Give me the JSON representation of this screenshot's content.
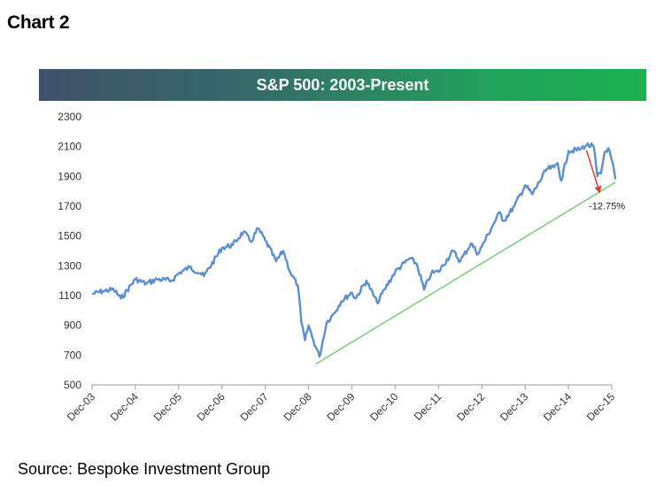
{
  "heading": "Chart 2",
  "source": "Source: Bespoke Investment Group",
  "colors": {
    "series": "#5b8fd0",
    "trendline": "#7fcf7f",
    "arrow": "#e03a2f",
    "axis": "#9a9a9a"
  },
  "chart_data": {
    "type": "line",
    "title": "S&P 500: 2003-Present",
    "xlabel": "",
    "ylabel": "",
    "ylim": [
      500,
      2300
    ],
    "yticks": [
      500,
      700,
      900,
      1100,
      1300,
      1500,
      1700,
      1900,
      2100,
      2300
    ],
    "xtick_labels": [
      "Dec-03",
      "Dec-04",
      "Dec-05",
      "Dec-06",
      "Dec-07",
      "Dec-08",
      "Dec-09",
      "Dec-10",
      "Dec-11",
      "Dec-12",
      "Dec-13",
      "Dec-14",
      "Dec-15"
    ],
    "grid": false,
    "legend": "none",
    "series": [
      {
        "x": [
          "Dec-03",
          "Mar-04",
          "Jun-04",
          "Aug-04",
          "Dec-04",
          "Mar-05",
          "Jun-05",
          "Oct-05",
          "Dec-05",
          "Mar-06",
          "Jun-06",
          "Jul-06",
          "Dec-06",
          "Mar-07",
          "Jun-07",
          "Aug-07",
          "Oct-07",
          "Dec-07",
          "Mar-08",
          "May-08",
          "Jul-08",
          "Sep-08",
          "Oct-08",
          "Nov-08",
          "Dec-08",
          "Jan-09",
          "Mar-09",
          "May-09",
          "Jul-09",
          "Sep-09",
          "Dec-09",
          "Jan-10",
          "Apr-10",
          "Jul-10",
          "Sep-10",
          "Dec-10",
          "Apr-11",
          "Jun-11",
          "Aug-11",
          "Oct-11",
          "Dec-11",
          "Apr-12",
          "Jun-12",
          "Sep-12",
          "Nov-12",
          "Dec-12",
          "Mar-13",
          "May-13",
          "Jun-13",
          "Sep-13",
          "Dec-13",
          "Feb-14",
          "Jun-14",
          "Aug-14",
          "Sep-14",
          "Oct-14",
          "Dec-14",
          "Mar-15",
          "May-15",
          "Jul-15",
          "Aug-15",
          "Sep-15",
          "Oct-15",
          "Nov-15",
          "Dec-15",
          "Jan-16"
        ],
        "values": [
          1110,
          1130,
          1140,
          1080,
          1210,
          1180,
          1210,
          1200,
          1250,
          1290,
          1250,
          1230,
          1420,
          1440,
          1530,
          1460,
          1550,
          1470,
          1330,
          1400,
          1250,
          1170,
          920,
          800,
          900,
          820,
          690,
          920,
          980,
          1060,
          1120,
          1080,
          1200,
          1050,
          1140,
          1260,
          1350,
          1310,
          1140,
          1250,
          1260,
          1400,
          1330,
          1450,
          1380,
          1430,
          1570,
          1660,
          1600,
          1700,
          1840,
          1780,
          1950,
          1960,
          1990,
          1870,
          2070,
          2080,
          2110,
          2100,
          1900,
          1920,
          2060,
          2090,
          2010,
          1880
        ]
      }
    ],
    "trendline": {
      "x": [
        "Feb-09",
        "Jan-16"
      ],
      "y": [
        640,
        1860
      ]
    },
    "annotation": {
      "text": "-12.75%",
      "from": [
        "May-15",
        2110
      ],
      "to": [
        "Jan-16",
        1880
      ]
    }
  }
}
